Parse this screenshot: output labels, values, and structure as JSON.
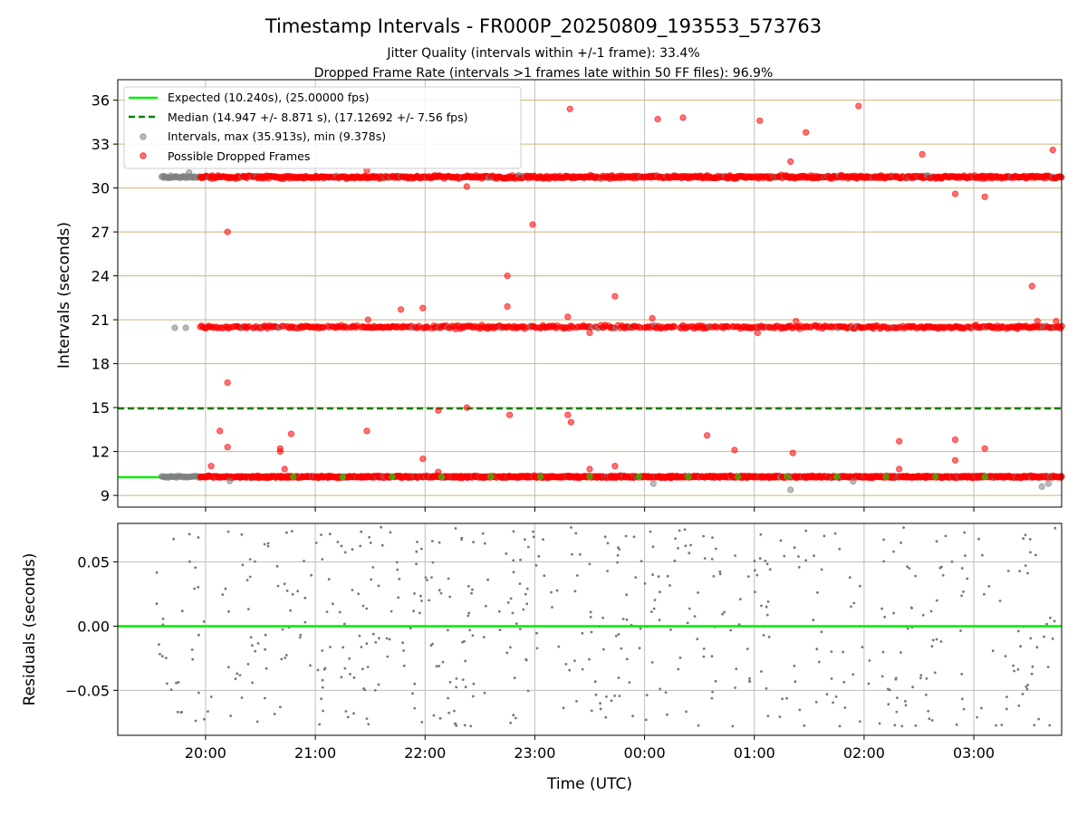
{
  "chart_data": [
    {
      "type": "scatter",
      "title": "Timestamp Intervals - FR000P_20250809_193553_573763",
      "subtitle_lines": [
        "Jitter Quality (intervals within +/-1 frame): 33.4%",
        "Dropped Frame Rate (intervals >1 frames late within 50 FF files): 96.9%"
      ],
      "ylabel": "Intervals (seconds)",
      "ylim": [
        8.2,
        37.4
      ],
      "y_ticks": [
        9,
        12,
        15,
        18,
        21,
        24,
        27,
        30,
        33,
        36
      ],
      "y_tick_labels": [
        "9",
        "12",
        "15",
        "18",
        "21",
        "24",
        "27",
        "30",
        "33",
        "36"
      ],
      "x_range_hours": [
        19.2,
        27.8
      ],
      "grid": true,
      "legend_position": "upper left",
      "legend": [
        "Expected (10.240s), (25.00000 fps)",
        "Median (14.947 +/- 8.871 s), (17.12692 +/- 7.56 fps)",
        "Intervals, max (35.913s), min (9.378s)",
        "Possible Dropped Frames"
      ],
      "reference_lines": {
        "expected": 10.24,
        "median": 14.947
      },
      "bands": {
        "low": {
          "center": 10.27,
          "start_hour": 19.6,
          "end_hour": 27.8
        },
        "mid": {
          "center": 20.5,
          "start_hour": 19.95,
          "end_hour": 27.8
        },
        "high": {
          "center": 30.75,
          "start_hour": 19.9,
          "end_hour": 27.8
        },
        "gray_cluster_hours": [
          19.6,
          19.95
        ]
      },
      "gray_points": [
        [
          19.62,
          30.7
        ],
        [
          19.68,
          30.7
        ],
        [
          19.73,
          30.8
        ],
        [
          19.8,
          30.75
        ],
        [
          19.88,
          30.7
        ],
        [
          19.85,
          31.05
        ],
        [
          19.72,
          20.45
        ],
        [
          19.82,
          20.45
        ],
        [
          20.22,
          9.98
        ],
        [
          24.08,
          9.8
        ],
        [
          25.33,
          9.38
        ],
        [
          25.9,
          9.96
        ],
        [
          27.62,
          9.6
        ],
        [
          27.68,
          9.8
        ]
      ],
      "red_points": [
        [
          20.2,
          27.0
        ],
        [
          20.2,
          16.7
        ],
        [
          20.13,
          13.4
        ],
        [
          20.2,
          12.3
        ],
        [
          20.05,
          11.0
        ],
        [
          20.68,
          12.2
        ],
        [
          20.68,
          12.0
        ],
        [
          20.78,
          13.2
        ],
        [
          20.72,
          10.8
        ],
        [
          21.47,
          31.2
        ],
        [
          21.48,
          21.0
        ],
        [
          21.47,
          13.4
        ],
        [
          21.78,
          21.7
        ],
        [
          21.98,
          21.8
        ],
        [
          21.98,
          11.5
        ],
        [
          22.12,
          14.8
        ],
        [
          22.12,
          10.6
        ],
        [
          22.38,
          15.0
        ],
        [
          22.38,
          30.1
        ],
        [
          22.75,
          24.0
        ],
        [
          22.75,
          21.9
        ],
        [
          22.77,
          14.5
        ],
        [
          22.98,
          27.5
        ],
        [
          23.3,
          21.2
        ],
        [
          23.32,
          35.4
        ],
        [
          23.3,
          14.5
        ],
        [
          23.33,
          14.0
        ],
        [
          23.5,
          20.1
        ],
        [
          23.5,
          10.8
        ],
        [
          23.73,
          22.6
        ],
        [
          23.73,
          11.0
        ],
        [
          24.07,
          21.1
        ],
        [
          24.12,
          34.7
        ],
        [
          24.35,
          34.8
        ],
        [
          24.57,
          13.1
        ],
        [
          24.82,
          12.1
        ],
        [
          25.05,
          34.6
        ],
        [
          25.03,
          20.1
        ],
        [
          25.33,
          31.8
        ],
        [
          25.38,
          20.9
        ],
        [
          25.35,
          11.9
        ],
        [
          25.47,
          33.8
        ],
        [
          25.95,
          35.6
        ],
        [
          26.32,
          12.7
        ],
        [
          26.32,
          10.8
        ],
        [
          26.53,
          32.3
        ],
        [
          26.83,
          29.6
        ],
        [
          26.83,
          11.4
        ],
        [
          26.83,
          12.8
        ],
        [
          27.1,
          29.4
        ],
        [
          27.1,
          12.2
        ],
        [
          27.53,
          23.3
        ],
        [
          27.58,
          20.9
        ],
        [
          27.75,
          20.9
        ],
        [
          27.72,
          32.6
        ],
        [
          26.28,
          20.45
        ],
        [
          25.97,
          20.45
        ],
        [
          27.4,
          20.45
        ]
      ],
      "colors": {
        "expected": "#00ee00",
        "median": "#008000",
        "intervals": "#808080",
        "dropped": "#ff0000",
        "hgrid": "#d2b478",
        "vgrid": "#bfbfbf"
      }
    },
    {
      "type": "scatter",
      "ylabel": "Residuals (seconds)",
      "xlabel": "Time (UTC)",
      "ylim": [
        -0.085,
        0.08
      ],
      "y_ticks": [
        -0.05,
        0,
        0.05
      ],
      "y_tick_labels": [
        "−0.05",
        "0.00",
        "0.05"
      ],
      "x_ticks": [
        20,
        21,
        22,
        23,
        24,
        25,
        26,
        27
      ],
      "x_tick_labels": [
        "20:00",
        "21:00",
        "22:00",
        "23:00",
        "00:00",
        "01:00",
        "02:00",
        "03:00"
      ],
      "x_range_hours": [
        19.2,
        27.8
      ],
      "zero_line": 0,
      "grid": true,
      "residual_spread": 0.078,
      "point_count": 560
    }
  ]
}
